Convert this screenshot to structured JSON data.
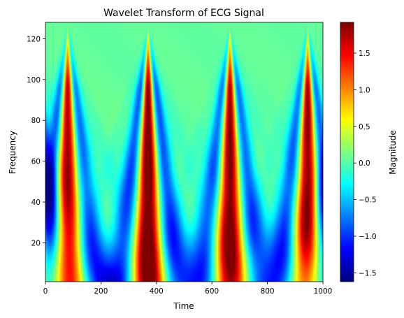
{
  "chart_data": {
    "type": "heatmap",
    "title": "Wavelet Transform of ECG Signal",
    "xlabel": "Time",
    "ylabel": "Frequency",
    "xlim": [
      0,
      1000
    ],
    "ylim": [
      1,
      128
    ],
    "x_ticks": [
      0,
      200,
      400,
      600,
      800,
      1000
    ],
    "y_ticks": [
      20,
      40,
      60,
      80,
      100,
      120
    ],
    "colorbar": {
      "label": "Magnitude",
      "range": [
        -1.62,
        1.92
      ],
      "ticks": [
        "−1.5",
        "−1.0",
        "−0.5",
        "0.0",
        "0.5",
        "1.0",
        "1.5"
      ],
      "tick_values": [
        -1.5,
        -1.0,
        -0.5,
        0.0,
        0.5,
        1.0,
        1.5
      ],
      "colormap": "jet"
    },
    "beats": [
      {
        "time": 80,
        "amplitude": 1.0
      },
      {
        "time": 370,
        "amplitude": 1.15
      },
      {
        "time": 665,
        "amplitude": 1.05
      },
      {
        "time": 945,
        "amplitude": 1.05
      }
    ],
    "grid": false
  }
}
